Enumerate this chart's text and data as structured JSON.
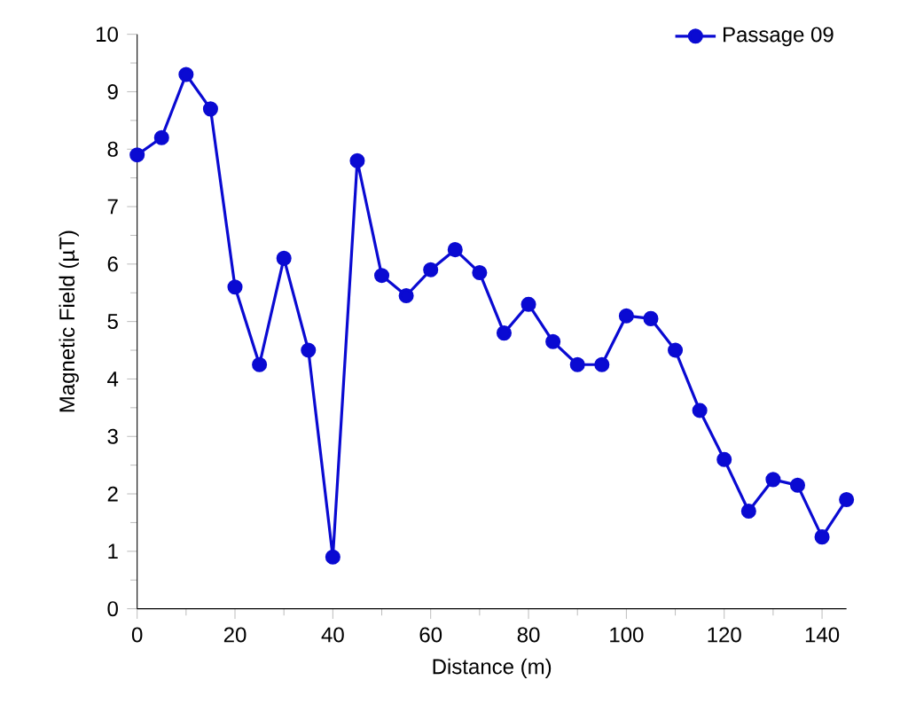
{
  "chart_data": {
    "type": "line",
    "xlabel": "Distance (m)",
    "ylabel": "Magnetic Field (µT)",
    "x": [
      0,
      5,
      10,
      15,
      20,
      25,
      30,
      35,
      40,
      45,
      50,
      55,
      60,
      65,
      70,
      75,
      80,
      85,
      90,
      95,
      100,
      105,
      110,
      115,
      120,
      125,
      130,
      135,
      140,
      145
    ],
    "series": [
      {
        "name": "Passage 09",
        "color": "#0a0ad2",
        "values": [
          7.9,
          8.2,
          9.3,
          8.7,
          5.6,
          4.25,
          6.1,
          4.5,
          0.9,
          7.8,
          5.8,
          5.45,
          5.9,
          6.25,
          5.85,
          4.8,
          5.3,
          4.65,
          4.25,
          4.25,
          5.1,
          5.05,
          4.5,
          3.45,
          2.6,
          1.7,
          2.25,
          2.15,
          1.25,
          1.9
        ]
      }
    ],
    "xlim": [
      0,
      145
    ],
    "ylim": [
      0,
      10
    ],
    "xticks": [
      0,
      20,
      40,
      60,
      80,
      100,
      120,
      140
    ],
    "yticks": [
      0,
      1,
      2,
      3,
      4,
      5,
      6,
      7,
      8,
      9,
      10
    ],
    "legend": "top right",
    "marker": "circle",
    "line_style": "solid",
    "grid": false
  }
}
